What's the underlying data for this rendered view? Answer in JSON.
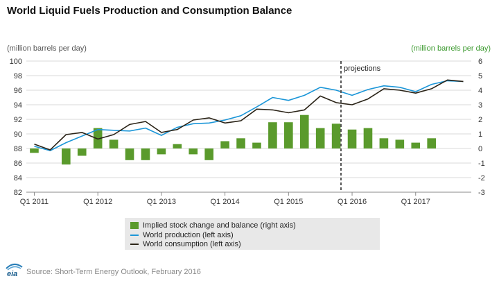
{
  "title": "World Liquid Fuels Production and Consumption Balance",
  "colors": {
    "bars": "#5a9a2c",
    "production": "#1b96d8",
    "consumption": "#2b2418",
    "right_axis": "#3c9a2f",
    "grid": "#d9d9d9",
    "projection_line": "#555555",
    "legend_bg": "#e8e8e8"
  },
  "source": "Source: Short-Term Energy Outlook, February 2016",
  "logo_text": "eia",
  "chart_data": {
    "type": "combo",
    "title": "World Liquid Fuels Production and Consumption Balance",
    "left_axis": {
      "label": "(million barrels per day)",
      "min": 82,
      "max": 100,
      "ticks": [
        82,
        84,
        86,
        88,
        90,
        92,
        94,
        96,
        98,
        100
      ]
    },
    "right_axis": {
      "label": "(million barrels per day)",
      "min": -3,
      "max": 6,
      "ticks": [
        -3,
        -2,
        -1,
        0,
        1,
        2,
        3,
        4,
        5,
        6
      ]
    },
    "quarters": [
      "Q1 2011",
      "Q2 2011",
      "Q3 2011",
      "Q4 2011",
      "Q1 2012",
      "Q2 2012",
      "Q3 2012",
      "Q4 2012",
      "Q1 2013",
      "Q2 2013",
      "Q3 2013",
      "Q4 2013",
      "Q1 2014",
      "Q2 2014",
      "Q3 2014",
      "Q4 2014",
      "Q1 2015",
      "Q2 2015",
      "Q3 2015",
      "Q4 2015",
      "Q1 2016",
      "Q2 2016",
      "Q3 2016",
      "Q4 2016",
      "Q1 2017",
      "Q2 2017",
      "Q3 2017",
      "Q4 2017"
    ],
    "x_tick_labels": [
      "Q1 2011",
      "Q1 2012",
      "Q1 2013",
      "Q1 2014",
      "Q1 2015",
      "Q1 2016",
      "Q1 2017"
    ],
    "projection_label": "projections",
    "projection_start_index": 19.8,
    "series": [
      {
        "name": "Implied stock change and balance (right axis)",
        "type": "bar",
        "axis": "right",
        "values": [
          -0.3,
          null,
          -1.1,
          -0.5,
          1.4,
          0.6,
          -0.8,
          -0.8,
          -0.4,
          0.3,
          -0.4,
          -0.8,
          0.5,
          0.7,
          0.4,
          1.8,
          1.8,
          2.3,
          1.4,
          1.7,
          1.3,
          1.4,
          0.7,
          0.6,
          0.4,
          0.7,
          null,
          null
        ]
      },
      {
        "name": "World production (left axis)",
        "type": "line",
        "axis": "left",
        "values": [
          88.3,
          87.7,
          88.8,
          89.7,
          90.6,
          90.5,
          90.4,
          90.8,
          89.8,
          90.9,
          91.4,
          91.5,
          91.9,
          92.5,
          93.7,
          95.0,
          94.6,
          95.3,
          96.4,
          96.0,
          95.3,
          96.1,
          96.6,
          96.4,
          95.8,
          96.8,
          97.3,
          97.2
        ]
      },
      {
        "name": "World consumption (left axis)",
        "type": "line",
        "axis": "left",
        "values": [
          88.6,
          87.8,
          89.9,
          90.2,
          89.3,
          89.9,
          91.3,
          91.7,
          90.2,
          90.6,
          91.9,
          92.2,
          91.5,
          91.8,
          93.4,
          93.3,
          92.9,
          93.3,
          95.2,
          94.3,
          94.0,
          94.8,
          96.2,
          96.0,
          95.6,
          96.2,
          97.4,
          97.2
        ]
      }
    ]
  }
}
